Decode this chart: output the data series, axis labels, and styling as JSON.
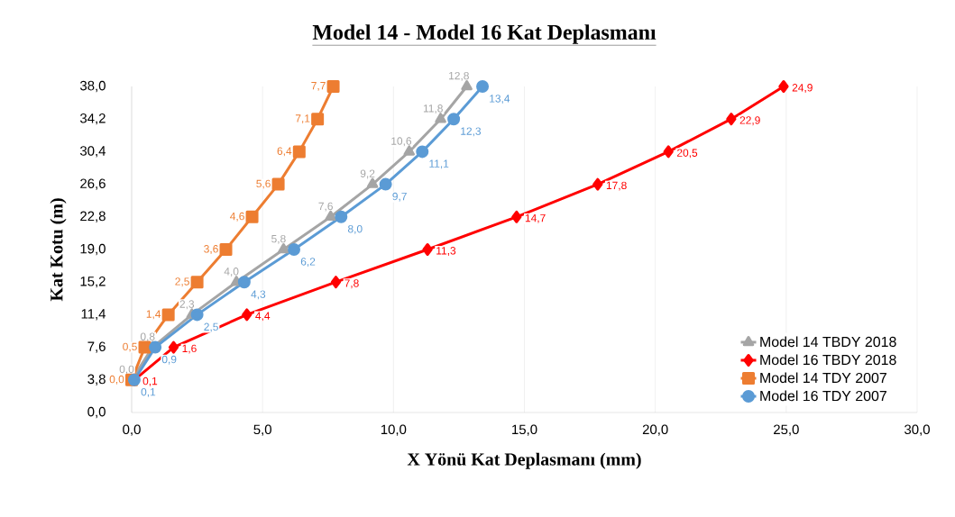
{
  "chart_data": {
    "type": "line",
    "orientation": "horizontal",
    "title": "Model 14 - Model 16 Kat Deplasmanı",
    "xlabel": "X Yönü Kat Deplasmanı (mm)",
    "ylabel": "Kat Kotu (m)",
    "xlim": [
      0,
      30
    ],
    "ylim": [
      0,
      38
    ],
    "xticks": [
      {
        "value": 0,
        "label": "0,0"
      },
      {
        "value": 5,
        "label": "5,0"
      },
      {
        "value": 10,
        "label": "10,0"
      },
      {
        "value": 15,
        "label": "15,0"
      },
      {
        "value": 20,
        "label": "20,0"
      },
      {
        "value": 25,
        "label": "25,0"
      },
      {
        "value": 30,
        "label": "30,0"
      }
    ],
    "yticks": [
      {
        "value": 0,
        "label": "0,0"
      },
      {
        "value": 3.8,
        "label": "3,8"
      },
      {
        "value": 7.6,
        "label": "7,6"
      },
      {
        "value": 11.4,
        "label": "11,4"
      },
      {
        "value": 15.2,
        "label": "15,2"
      },
      {
        "value": 19,
        "label": "19,0"
      },
      {
        "value": 22.8,
        "label": "22,8"
      },
      {
        "value": 26.6,
        "label": "26,6"
      },
      {
        "value": 30.4,
        "label": "30,4"
      },
      {
        "value": 34.2,
        "label": "34,2"
      },
      {
        "value": 38,
        "label": "38,0"
      }
    ],
    "grid": "x",
    "legend": "bottom right",
    "series": [
      {
        "name": "Model 14 TBDY 2018",
        "color": "#a5a5a5",
        "marker": "triangle",
        "x": [
          3.8,
          7.6,
          11.4,
          15.2,
          19,
          22.8,
          26.6,
          30.4,
          34.2,
          38
        ],
        "values": [
          0.0,
          0.8,
          2.3,
          4.0,
          5.8,
          7.6,
          9.2,
          10.6,
          11.8,
          12.8
        ],
        "value_labels": [
          "0,0",
          "0,8",
          "2,3",
          "4,0",
          "5,8",
          "7,6",
          "9,2",
          "10,6",
          "11,8",
          "12,8"
        ]
      },
      {
        "name": "Model 16 TBDY 2018",
        "color": "#ff0000",
        "marker": "diamond",
        "x": [
          3.8,
          7.6,
          11.4,
          15.2,
          19,
          22.8,
          26.6,
          30.4,
          34.2,
          38
        ],
        "values": [
          0.1,
          1.6,
          4.4,
          7.8,
          11.3,
          14.7,
          17.8,
          20.5,
          22.9,
          24.9
        ],
        "value_labels": [
          "0,1",
          "1,6",
          "4,4",
          "7,8",
          "11,3",
          "14,7",
          "17,8",
          "20,5",
          "22,9",
          "24,9"
        ]
      },
      {
        "name": "Model 14 TDY 2007",
        "color": "#ed7d31",
        "marker": "square",
        "x": [
          3.8,
          7.6,
          11.4,
          15.2,
          19,
          22.8,
          26.6,
          30.4,
          34.2,
          38
        ],
        "values": [
          0.0,
          0.5,
          1.4,
          2.5,
          3.6,
          4.6,
          5.6,
          6.4,
          7.1,
          7.7
        ],
        "value_labels": [
          "0,0",
          "0,5",
          "1,4",
          "2,5",
          "3,6",
          "4,6",
          "5,6",
          "6,4",
          "7,1",
          "7,7"
        ]
      },
      {
        "name": "Model 16 TDY 2007",
        "color": "#5b9bd5",
        "marker": "circle",
        "x": [
          3.8,
          7.6,
          11.4,
          15.2,
          19,
          22.8,
          26.6,
          30.4,
          34.2,
          38
        ],
        "values": [
          0.1,
          0.9,
          2.5,
          4.3,
          6.2,
          8.0,
          9.7,
          11.1,
          12.3,
          13.4
        ],
        "value_labels": [
          "0,1",
          "0,9",
          "2,5",
          "4,3",
          "6,2",
          "8,0",
          "9,7",
          "11,1",
          "12,3",
          "13,4"
        ]
      }
    ]
  }
}
